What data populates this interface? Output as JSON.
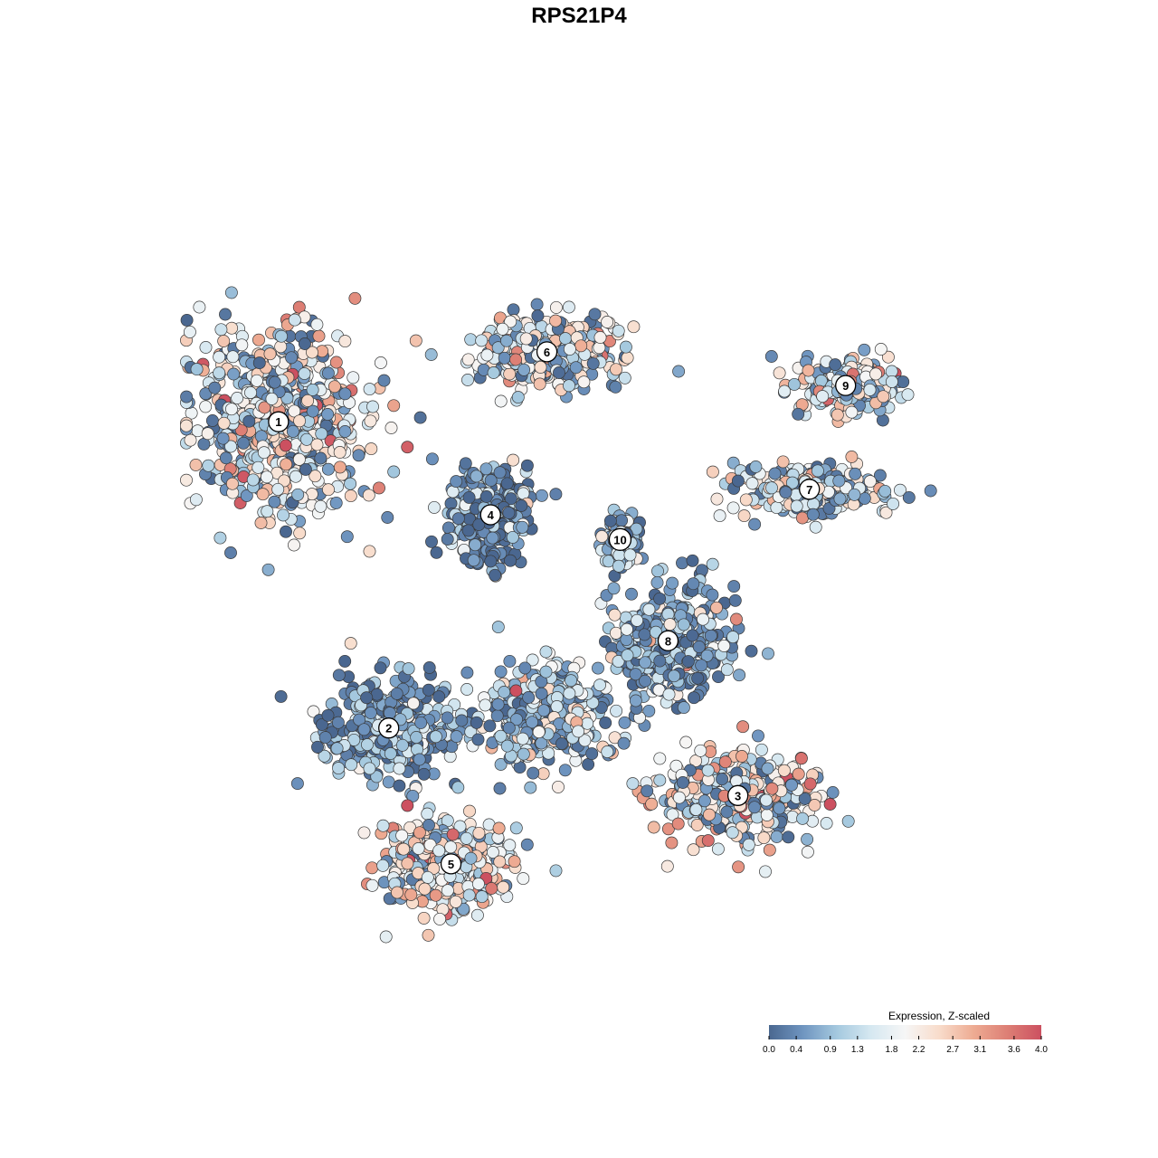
{
  "chart_data": {
    "type": "scatter",
    "title": "RPS21P4",
    "xlabel": "",
    "ylabel": "",
    "grid": false,
    "axes_visible": false,
    "legend": {
      "title": "Expression, Z-scaled",
      "placement": "bottom-right",
      "range": [
        0.0,
        4.0
      ],
      "ticks": [
        {
          "value": 0.0,
          "label": "0.0"
        },
        {
          "value": 0.4,
          "label": "0.4"
        },
        {
          "value": 0.9,
          "label": "0.9"
        },
        {
          "value": 1.3,
          "label": "1.3"
        },
        {
          "value": 1.8,
          "label": "1.8"
        },
        {
          "value": 2.2,
          "label": "2.2"
        },
        {
          "value": 2.7,
          "label": "2.7"
        },
        {
          "value": 3.1,
          "label": "3.1"
        },
        {
          "value": 3.6,
          "label": "3.6"
        },
        {
          "value": 4.0,
          "label": "4.0"
        }
      ],
      "colorscale": [
        "#4a6790",
        "#6f95c0",
        "#a5c9df",
        "#d6e8f1",
        "#f6f6f6",
        "#f8dccb",
        "#eeac93",
        "#dd7f75",
        "#cc5060"
      ]
    },
    "clusters": [
      {
        "label": "1",
        "x": 0.116,
        "y": 0.691,
        "spread": [
          0.105,
          0.115
        ],
        "mean_expr": 1.9
      },
      {
        "label": "2",
        "x": 0.247,
        "y": 0.319,
        "spread": [
          0.08,
          0.06
        ],
        "mean_expr": 0.7
      },
      {
        "label": "3",
        "x": 0.662,
        "y": 0.237,
        "spread": [
          0.095,
          0.055
        ],
        "mean_expr": 2.1
      },
      {
        "label": "4",
        "x": 0.368,
        "y": 0.578,
        "spread": [
          0.048,
          0.06
        ],
        "mean_expr": 0.5
      },
      {
        "label": "5",
        "x": 0.321,
        "y": 0.154,
        "spread": [
          0.08,
          0.055
        ],
        "mean_expr": 2.0
      },
      {
        "label": "6",
        "x": 0.435,
        "y": 0.776,
        "spread": [
          0.09,
          0.04
        ],
        "mean_expr": 1.7
      },
      {
        "label": "7",
        "x": 0.747,
        "y": 0.609,
        "spread": [
          0.085,
          0.03
        ],
        "mean_expr": 1.6
      },
      {
        "label": "8",
        "x": 0.579,
        "y": 0.425,
        "spread": [
          0.07,
          0.07
        ],
        "mean_expr": 0.9
      },
      {
        "label": "9",
        "x": 0.79,
        "y": 0.735,
        "spread": [
          0.06,
          0.03
        ],
        "mean_expr": 1.7
      },
      {
        "label": "10",
        "x": 0.522,
        "y": 0.548,
        "spread": [
          0.018,
          0.025
        ],
        "mean_expr": 1.0
      },
      {
        "label": "",
        "x": 0.435,
        "y": 0.335,
        "spread": [
          0.075,
          0.065
        ],
        "mean_expr": 1.3
      }
    ]
  }
}
